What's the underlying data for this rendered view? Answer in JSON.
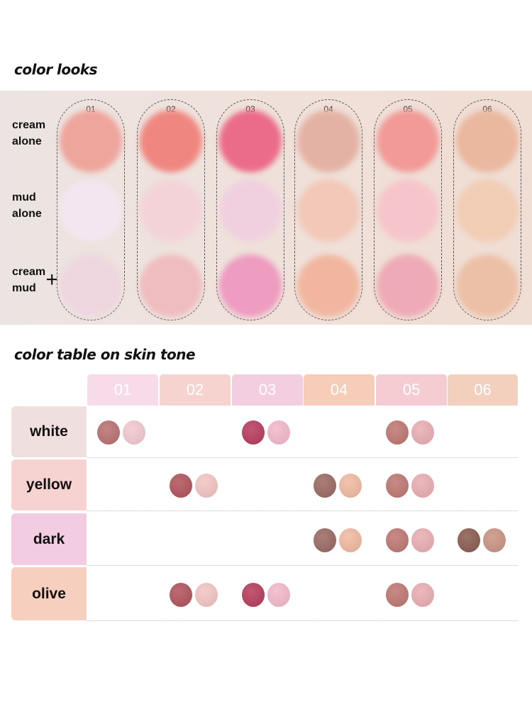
{
  "section1_title": "color looks",
  "section2_title": "color table on skin tone",
  "swatch_rows": [
    {
      "label": [
        "cream",
        "alone"
      ]
    },
    {
      "label": [
        "mud",
        "alone"
      ]
    },
    {
      "label": [
        "cream",
        "mud"
      ]
    }
  ],
  "plus_sign": "+",
  "products": [
    {
      "num": "01",
      "cream": "#eea59c",
      "mud": "#f3e6f0",
      "mix": "#eed6df",
      "header": "#f8dbe8",
      "t_cream": "#b8706f",
      "t_mud": "#f2c8cf"
    },
    {
      "num": "02",
      "cream": "#ef8780",
      "mud": "#f3d3d8",
      "mix": "#efbcc0",
      "header": "#f6d3cf",
      "t_cream": "#b1525a",
      "t_mud": "#f2c4c2"
    },
    {
      "num": "03",
      "cream": "#eb6c8a",
      "mud": "#f0d0df",
      "mix": "#ee9cc0",
      "header": "#f3cde0",
      "t_cream": "#b73b5b",
      "t_mud": "#f3b8c9"
    },
    {
      "num": "04",
      "cream": "#e4b2a4",
      "mud": "#f2c8b8",
      "mix": "#f1b69f",
      "header": "#f6cdb8",
      "t_cream": "#9a6862",
      "t_mud": "#f0b9a0"
    },
    {
      "num": "05",
      "cream": "#f19a98",
      "mud": "#f6c5cc",
      "mix": "#eeaab7",
      "header": "#f5ccd2",
      "t_cream": "#be7670",
      "t_mud": "#e9adb2"
    },
    {
      "num": "06",
      "cream": "#eab79f",
      "mud": "#f1cdb6",
      "mix": "#ecc0a6",
      "header": "#f3cfbd",
      "t_cream": "#8a5a4e",
      "t_mud": "#c99383"
    }
  ],
  "table_rows": [
    {
      "label": "white",
      "color": "#efdfdf",
      "products": [
        "01",
        "03",
        "05"
      ]
    },
    {
      "label": "yellow",
      "color": "#f6d2d0",
      "products": [
        "02",
        "04",
        "05"
      ]
    },
    {
      "label": "dark",
      "color": "#f2cce0",
      "products": [
        "04",
        "05",
        "06"
      ]
    },
    {
      "label": "olive",
      "color": "#f6cfbf",
      "products": [
        "02",
        "03",
        "05"
      ]
    }
  ]
}
